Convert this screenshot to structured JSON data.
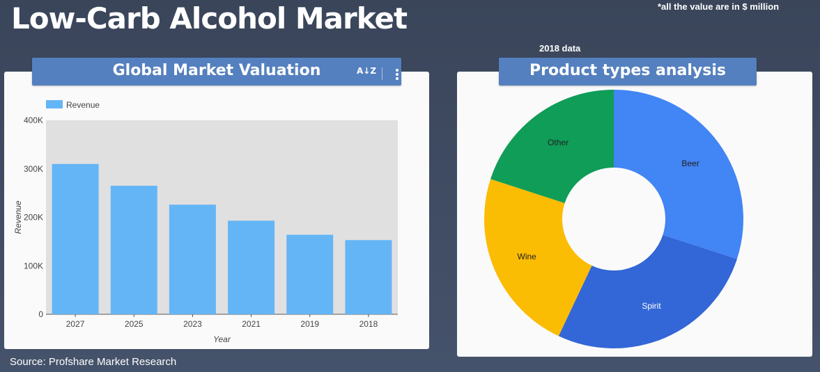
{
  "title": "Low-Carb Alcohol Market",
  "note": "*all the value are in $ million",
  "data_year": "2018 data",
  "source": "Source: Profshare Market Research",
  "panels": {
    "left_title": "Global Market Valuation",
    "right_title": "Product types analysis"
  },
  "colors": {
    "bar": "#64b5f6",
    "plot_bg": "#e0e0e0",
    "header": "#5580bf"
  },
  "chart_data": [
    {
      "type": "bar",
      "categories": [
        "2027",
        "2025",
        "2023",
        "2021",
        "2019",
        "2018"
      ],
      "series": [
        {
          "name": "Revenue",
          "values": [
            310000,
            265000,
            226000,
            193000,
            164000,
            153000
          ]
        }
      ],
      "xlabel": "Year",
      "ylabel": "Revenue",
      "ylim": [
        0,
        400000
      ],
      "yticks": [
        "0",
        "100K",
        "200K",
        "300K",
        "400K"
      ],
      "legend": "top-left",
      "grid": false
    },
    {
      "type": "pie",
      "donut": true,
      "labels": [
        "Beer",
        "Spirit",
        "Wine",
        "Other"
      ],
      "values": [
        30,
        27,
        23,
        20
      ],
      "colors": [
        "#4285f4",
        "#3366d6",
        "#fbbc04",
        "#0f9d58"
      ]
    }
  ]
}
